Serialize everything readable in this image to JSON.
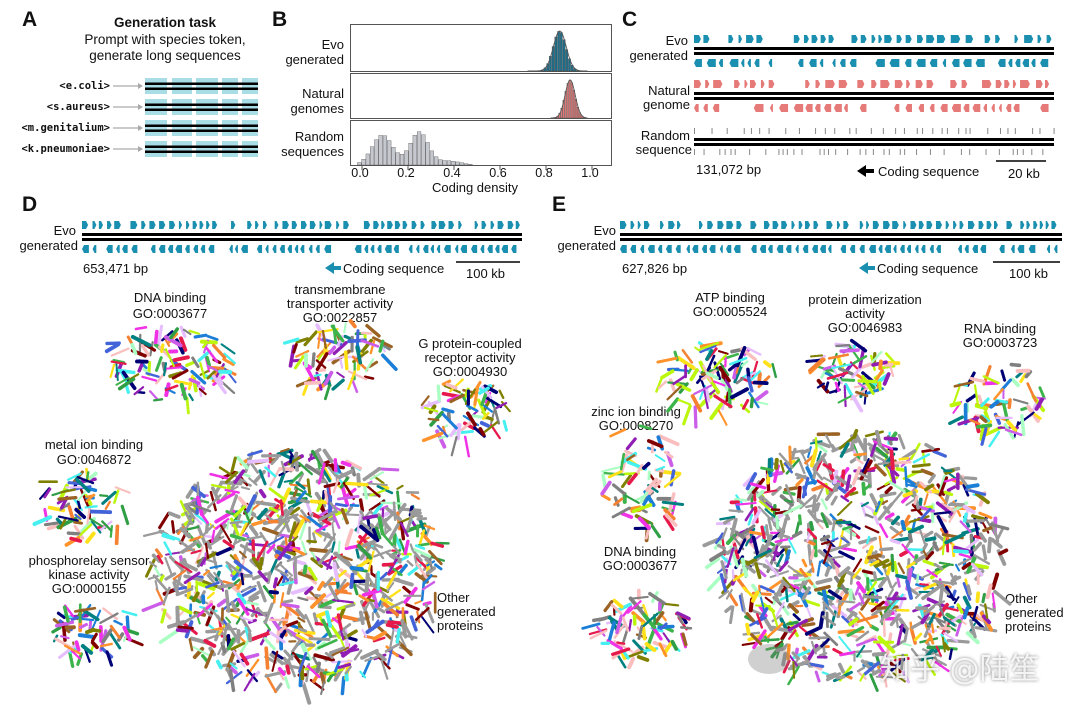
{
  "colors": {
    "evo": "#1a8fb0",
    "natural": "#e57a78",
    "random": "#9a9aa2",
    "highlight": "#a8dde6",
    "black": "#000000"
  },
  "panel_a": {
    "label": "A",
    "title": "Generation task",
    "subtitle_1": "Prompt with species token,",
    "subtitle_2": "generate long sequences",
    "tokens": [
      "<e.coli>",
      "<s.aureus>",
      "<m.genitalium>",
      "<k.pneumoniae>"
    ]
  },
  "panel_b": {
    "label": "B",
    "rows": [
      {
        "line1": "Evo",
        "line2": "generated"
      },
      {
        "line1": "Natural",
        "line2": "genomes"
      },
      {
        "line1": "Random",
        "line2": "sequences"
      }
    ],
    "xlabel": "Coding density",
    "xticks": [
      "0.0",
      "0.2",
      "0.4",
      "0.6",
      "0.8",
      "1.0"
    ]
  },
  "panel_c": {
    "label": "C",
    "tracks": [
      {
        "line1": "Evo",
        "line2": "generated"
      },
      {
        "line1": "Natural",
        "line2": "genome"
      },
      {
        "line1": "Random",
        "line2": "sequence"
      }
    ],
    "length": "131,072 bp",
    "legend": "Coding sequence",
    "scale": "20 kb"
  },
  "panel_d": {
    "label": "D",
    "track_line1": "Evo",
    "track_line2": "generated",
    "length": "653,471 bp",
    "legend": "Coding sequence",
    "scale": "100 kb",
    "groups": [
      {
        "l1": "DNA binding",
        "l2": "GO:0003677"
      },
      {
        "l1": "transmembrane",
        "l2": "transporter activity",
        "l3": "GO:0022857"
      },
      {
        "l1": "G protein-coupled",
        "l2": "receptor activity",
        "l3": "GO:0004930"
      },
      {
        "l1": "metal ion binding",
        "l2": "GO:0046872"
      },
      {
        "l1": "phosphorelay sensor",
        "l2": "kinase activity",
        "l3": "GO:0000155"
      }
    ],
    "other": {
      "l1": "Other",
      "l2": "generated",
      "l3": "proteins"
    }
  },
  "panel_e": {
    "label": "E",
    "track_line1": "Evo",
    "track_line2": "generated",
    "length": "627,826 bp",
    "legend": "Coding sequence",
    "scale": "100 kb",
    "groups": [
      {
        "l1": "ATP binding",
        "l2": "GO:0005524"
      },
      {
        "l1": "protein dimerization",
        "l2": "activity",
        "l3": "GO:0046983"
      },
      {
        "l1": "RNA binding",
        "l2": "GO:0003723"
      },
      {
        "l1": "zinc ion binding",
        "l2": "GO:0008270"
      },
      {
        "l1": "DNA binding",
        "l2": "GO:0003677"
      }
    ],
    "other": {
      "l1": "Other",
      "l2": "generated",
      "l3": "proteins"
    }
  },
  "watermark": "知乎 @陆笙"
}
